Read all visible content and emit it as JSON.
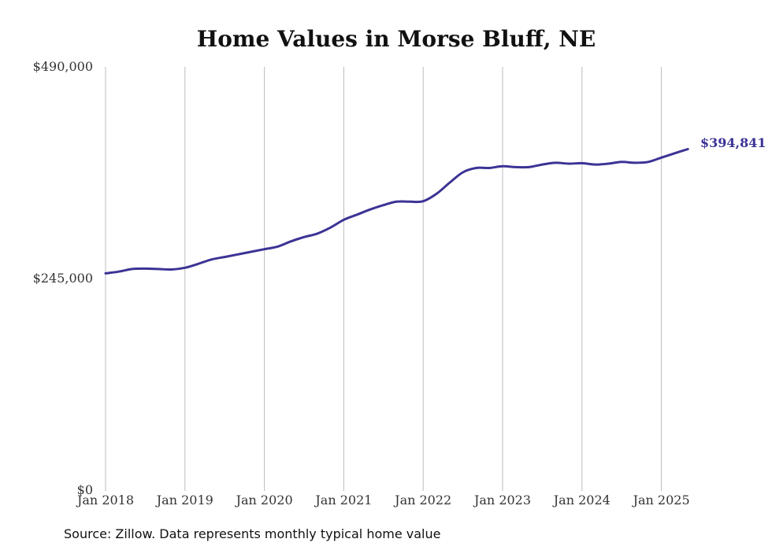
{
  "chart_data": {
    "type": "line",
    "title": "Home Values in Morse Bluff, NE",
    "xlabel": "",
    "ylabel": "",
    "ylim": [
      0,
      490000
    ],
    "y_ticks": [
      "$490,000",
      "$245,000",
      "$0"
    ],
    "y_tick_values": [
      490000,
      245000,
      0
    ],
    "x_ticks": [
      "Jan 2018",
      "Jan 2019",
      "Jan 2020",
      "Jan 2021",
      "Jan 2022",
      "Jan 2023",
      "Jan 2024",
      "Jan 2025"
    ],
    "x_tick_dates": [
      "2018-01",
      "2019-01",
      "2020-01",
      "2021-01",
      "2022-01",
      "2023-01",
      "2024-01",
      "2025-01"
    ],
    "grid": "vertical",
    "line_color": "#3b3395",
    "series": [
      {
        "dates": [
          "2018-01",
          "2018-03",
          "2018-05",
          "2018-07",
          "2018-09",
          "2018-11",
          "2019-01",
          "2019-03",
          "2019-05",
          "2019-07",
          "2019-09",
          "2019-11",
          "2020-01",
          "2020-03",
          "2020-05",
          "2020-07",
          "2020-09",
          "2020-11",
          "2021-01",
          "2021-03",
          "2021-05",
          "2021-07",
          "2021-09",
          "2021-11",
          "2022-01",
          "2022-03",
          "2022-05",
          "2022-07",
          "2022-09",
          "2022-11",
          "2023-01",
          "2023-03",
          "2023-05",
          "2023-07",
          "2023-09",
          "2023-11",
          "2024-01",
          "2024-03",
          "2024-05",
          "2024-07",
          "2024-09",
          "2024-11",
          "2025-01",
          "2025-03",
          "2025-05"
        ],
        "values": [
          251000,
          253000,
          256000,
          256500,
          256000,
          255500,
          257500,
          262000,
          267000,
          270000,
          273000,
          276000,
          279000,
          282000,
          288000,
          293000,
          297000,
          304000,
          313000,
          319000,
          325000,
          330000,
          334000,
          334000,
          334500,
          343000,
          356000,
          368000,
          373000,
          373000,
          375000,
          374000,
          374000,
          377000,
          379000,
          378000,
          378500,
          377000,
          378000,
          380000,
          379000,
          380000,
          385000,
          390000,
          394841
        ]
      }
    ],
    "end_label": "$394,841",
    "source_note": "Source: Zillow. Data represents monthly typical home value"
  }
}
